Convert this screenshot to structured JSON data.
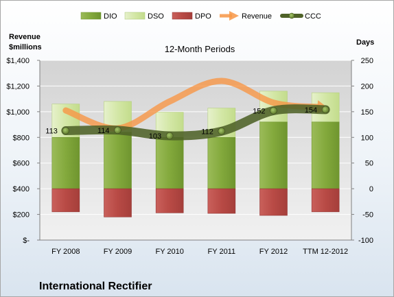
{
  "chart_data": {
    "type": "bar",
    "title": "12-Month Periods",
    "company": "International Rectifier",
    "categories": [
      "FY 2008",
      "FY 2009",
      "FY 2010",
      "FY 2011",
      "FY 2012",
      "TTM 12-2012"
    ],
    "left_axis": {
      "label_line1": "Revenue",
      "label_line2": "$millions",
      "range": [
        0,
        1400
      ],
      "ticks": [
        0,
        200,
        400,
        600,
        800,
        1000,
        1200,
        1400
      ],
      "tick_labels": [
        "$-",
        "$200",
        "$400",
        "$600",
        "$800",
        "$1,000",
        "$1,200",
        "$1,400"
      ]
    },
    "right_axis": {
      "label": "Days",
      "range": [
        -100,
        250
      ],
      "ticks": [
        -100,
        -50,
        0,
        50,
        100,
        150,
        200,
        250
      ],
      "tick_labels": [
        "-100",
        "-50",
        "0",
        "50",
        "100",
        "150",
        "200",
        "250"
      ]
    },
    "series": [
      {
        "name": "DIO",
        "axis": "days",
        "kind": "stacked-bar",
        "color": "#7aa83a",
        "values": [
          100,
          110,
          100,
          100,
          130,
          130
        ]
      },
      {
        "name": "DSO",
        "axis": "days",
        "kind": "stacked-bar",
        "color": "#cfe4a1",
        "values": [
          65,
          60,
          49,
          57,
          60,
          57
        ]
      },
      {
        "name": "DPO",
        "axis": "days",
        "kind": "stacked-bar",
        "color": "#c0504d",
        "values": [
          -45,
          -55,
          -47,
          -48,
          -52,
          -45
        ]
      },
      {
        "name": "Revenue",
        "axis": "revenue",
        "kind": "line",
        "color": "#f79646",
        "values": [
          1010,
          870,
          1080,
          1240,
          1070,
          1030
        ]
      },
      {
        "name": "CCC",
        "axis": "days",
        "kind": "line",
        "color": "#4f6228",
        "values": [
          113,
          114,
          103,
          112,
          152,
          154
        ]
      }
    ],
    "ccc_labels": [
      "113",
      "114",
      "103",
      "112",
      "152",
      "154"
    ],
    "legend_position": "top",
    "grid": true
  }
}
